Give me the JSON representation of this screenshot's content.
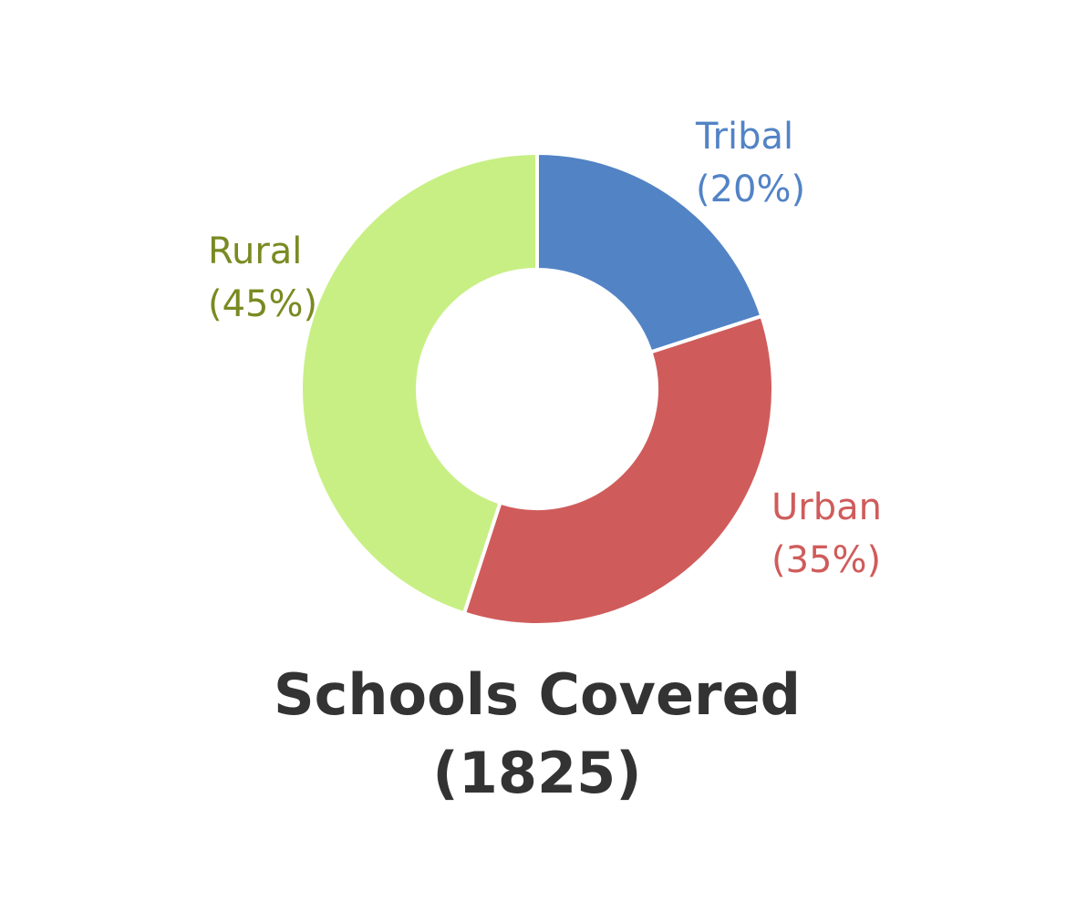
{
  "chart_data": {
    "type": "pie",
    "donut": true,
    "title": "Schools Covered",
    "title_line2": "(1825)",
    "start_angle_deg": 0,
    "direction": "clockwise",
    "slices": [
      {
        "label": "Tribal",
        "percent_label": "(20%)",
        "value": 20,
        "color": "#5283c5",
        "label_color": "#5283c5",
        "label_side": "top-right"
      },
      {
        "label": "Urban",
        "percent_label": "(35%)",
        "value": 35,
        "color": "#cf5c5b",
        "label_color": "#cf5c5b",
        "label_side": "bottom-right"
      },
      {
        "label": "Rural",
        "percent_label": "(45%)",
        "value": 45,
        "color": "#c8ef84",
        "label_color": "#7a8a22",
        "label_side": "top-left"
      }
    ]
  }
}
